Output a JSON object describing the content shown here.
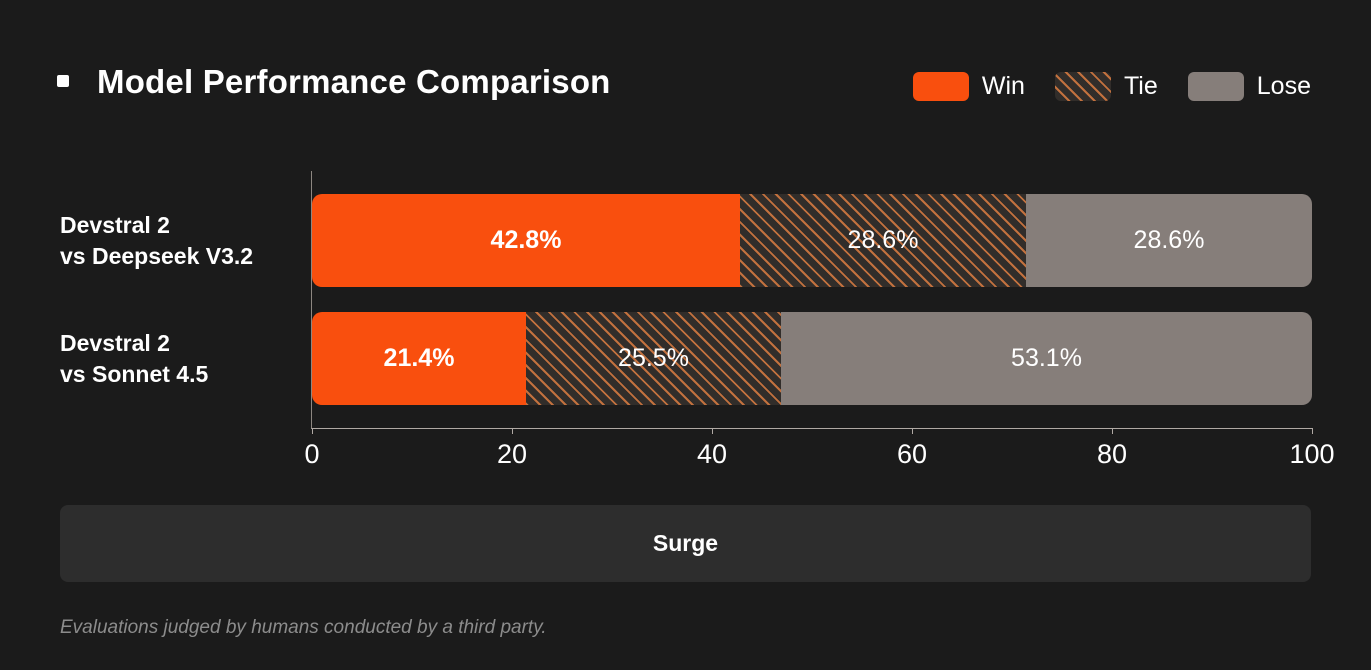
{
  "header": {
    "title": "Model Performance Comparison"
  },
  "legend": {
    "items": [
      {
        "label": "Win",
        "swatch": "solid-orange"
      },
      {
        "label": "Tie",
        "swatch": "diagonal-hatch"
      },
      {
        "label": "Lose",
        "swatch": "solid-gray"
      }
    ]
  },
  "chart_data": {
    "type": "bar",
    "orientation": "horizontal",
    "stacked": true,
    "title": "Model Performance Comparison",
    "category_lines": [
      [
        "Devstral 2",
        "vs Deepseek V3.2"
      ],
      [
        "Devstral 2",
        "vs Sonnet 4.5"
      ]
    ],
    "series": [
      {
        "name": "Win",
        "values": [
          42.8,
          21.4
        ]
      },
      {
        "name": "Tie",
        "values": [
          28.6,
          25.5
        ]
      },
      {
        "name": "Lose",
        "values": [
          28.6,
          53.1
        ]
      }
    ],
    "data_labels": [
      [
        "42.8%",
        "28.6%",
        "28.6%"
      ],
      [
        "21.4%",
        "25.5%",
        "53.1%"
      ]
    ],
    "x_ticks": [
      "0",
      "20",
      "40",
      "60",
      "80",
      "100"
    ],
    "xlim": [
      0,
      100
    ],
    "grid": false,
    "legend_position": "top-right"
  },
  "footer_button": {
    "label": "Surge"
  },
  "footnote": "Evaluations judged by humans conducted by a third party.",
  "colors": {
    "background": "#1b1b1b",
    "win": "#f94f0e",
    "tie_bg": "#312d2a",
    "tie_stripe": "#c2713e",
    "lose": "#867e7a",
    "surge_bg": "#2d2d2d",
    "axis": "#b0a9a4",
    "yaxis": "#8d8781",
    "footnote_text": "#8c8c8c"
  }
}
